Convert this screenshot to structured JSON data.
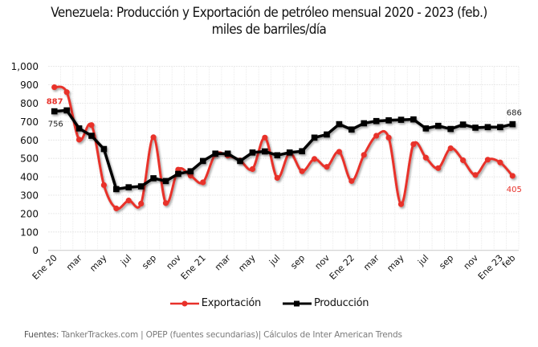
{
  "chart_data": {
    "type": "line",
    "title": "Venezuela: Producción y Exportación de petróleo mensual 2020 - 2023 (feb.)",
    "subtitle": "miles de barriles/día",
    "xlabel": "",
    "ylabel": "",
    "ylim": [
      0,
      1000
    ],
    "yticks": [
      "0",
      "100",
      "200",
      "300",
      "400",
      "500",
      "600",
      "700",
      "800",
      "900",
      "1,000"
    ],
    "ytick_values": [
      0,
      100,
      200,
      300,
      400,
      500,
      600,
      700,
      800,
      900,
      1000
    ],
    "grid": true,
    "legend_position": "bottom",
    "x": [
      "Ene 20",
      "feb",
      "mar",
      "abr",
      "may",
      "jun",
      "jul",
      "ago",
      "sep",
      "oct",
      "nov",
      "dic",
      "Ene 21",
      "feb",
      "mar",
      "abr",
      "may",
      "jun",
      "jul",
      "ago",
      "sep",
      "oct",
      "nov",
      "dic",
      "Ene 22",
      "feb",
      "mar",
      "abr",
      "may",
      "jun",
      "jul",
      "ago",
      "sep",
      "oct",
      "nov",
      "dic",
      "Ene 23",
      "feb"
    ],
    "xtick_labels": [
      {
        "index": 0,
        "label": "Ene 20"
      },
      {
        "index": 2,
        "label": "mar"
      },
      {
        "index": 4,
        "label": "may"
      },
      {
        "index": 6,
        "label": "jul"
      },
      {
        "index": 8,
        "label": "sep"
      },
      {
        "index": 10,
        "label": "nov"
      },
      {
        "index": 12,
        "label": "Ene 21"
      },
      {
        "index": 14,
        "label": "mar"
      },
      {
        "index": 16,
        "label": "may"
      },
      {
        "index": 18,
        "label": "jul"
      },
      {
        "index": 20,
        "label": "sep"
      },
      {
        "index": 22,
        "label": "nov"
      },
      {
        "index": 24,
        "label": "Ene 22"
      },
      {
        "index": 26,
        "label": "mar"
      },
      {
        "index": 28,
        "label": "may"
      },
      {
        "index": 30,
        "label": "jul"
      },
      {
        "index": 32,
        "label": "sep"
      },
      {
        "index": 34,
        "label": "nov"
      },
      {
        "index": 36,
        "label": "Ene 23"
      },
      {
        "index": 37,
        "label": "feb"
      }
    ],
    "series": [
      {
        "name": "Exportación",
        "color": "#e8312a",
        "marker": "circle",
        "smooth": true,
        "values": [
          887,
          860,
          602,
          681,
          355,
          228,
          271,
          254,
          615,
          257,
          439,
          406,
          370,
          522,
          515,
          489,
          442,
          613,
          394,
          529,
          430,
          497,
          454,
          536,
          377,
          519,
          623,
          613,
          251,
          577,
          504,
          447,
          555,
          490,
          410,
          493,
          478,
          405
        ],
        "data_labels": [
          {
            "index": 0,
            "label": "887"
          },
          {
            "index": 37,
            "label": "405"
          }
        ]
      },
      {
        "name": "Producción",
        "color": "#000000",
        "marker": "square",
        "smooth": false,
        "values": [
          756,
          761,
          663,
          623,
          551,
          333,
          343,
          348,
          392,
          377,
          416,
          430,
          486,
          526,
          526,
          486,
          532,
          538,
          517,
          532,
          539,
          613,
          630,
          686,
          657,
          691,
          703,
          707,
          710,
          712,
          663,
          677,
          660,
          684,
          667,
          670,
          670,
          686
        ],
        "data_labels": [
          {
            "index": 0,
            "label": "756"
          },
          {
            "index": 37,
            "label": "686"
          }
        ]
      }
    ]
  },
  "legend": {
    "items": [
      {
        "label": "Exportación",
        "color": "#e8312a"
      },
      {
        "label": "Producción",
        "color": "#000000"
      }
    ]
  },
  "footer": {
    "label": "Fuentes:",
    "text": " TankerTrackes.com | OPEP (fuentes secundarias)| Cálculos de Inter American Trends"
  }
}
